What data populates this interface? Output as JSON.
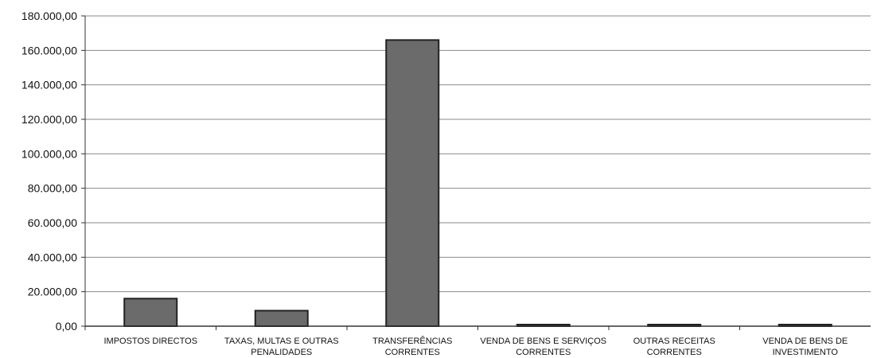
{
  "chart_data": {
    "type": "bar",
    "categories": [
      [
        "IMPOSTOS DIRECTOS"
      ],
      [
        "TAXAS, MULTAS E OUTRAS",
        "PENALIDADES"
      ],
      [
        "TRANSFERÊNCIAS",
        "CORRENTES"
      ],
      [
        "VENDA DE BENS E SERVIÇOS",
        "CORRENTES"
      ],
      [
        "OUTRAS RECEITAS",
        "CORRENTES"
      ],
      [
        "VENDA DE BENS DE",
        "INVESTIMENTO"
      ]
    ],
    "values": [
      16000,
      9000,
      166000,
      400,
      200,
      700
    ],
    "ylim": [
      0,
      180000
    ],
    "ytick_labels": [
      "0,00",
      "20.000,00",
      "40.000,00",
      "60.000,00",
      "80.000,00",
      "100.000,00",
      "120.000,00",
      "140.000,00",
      "160.000,00",
      "180.000,00"
    ],
    "grid": true,
    "bar_color": "#6b6b6b",
    "bar_edge_color": "#222222"
  }
}
